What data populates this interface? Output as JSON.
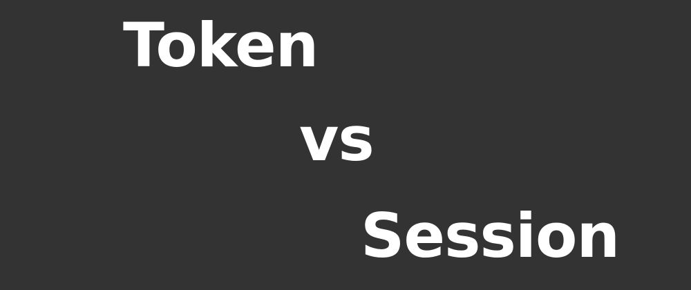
{
  "title_lines": {
    "first": "Token",
    "middle": "vs",
    "last": "Session"
  },
  "colors": {
    "background": "#333333",
    "text": "#ffffff"
  }
}
